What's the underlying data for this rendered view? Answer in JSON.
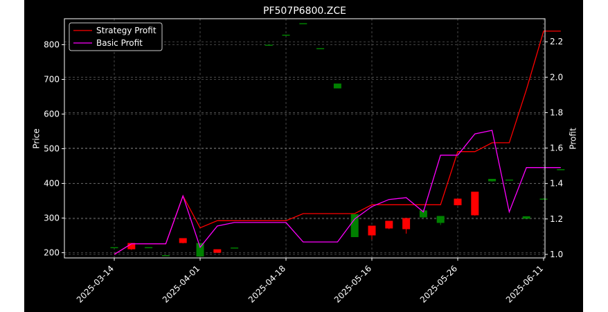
{
  "chart_data": {
    "type": "candlestick+line",
    "title": "PF507P6800.ZCE",
    "ylabel_left": "Price",
    "ylabel_right": "Profit",
    "xlabel": "",
    "ylim_left": [
      185,
      875
    ],
    "ylim_right": [
      0.98,
      2.33
    ],
    "yticks_left": [
      200,
      300,
      400,
      500,
      600,
      700,
      800
    ],
    "yticks_right": [
      1.0,
      1.2,
      1.4,
      1.6,
      1.8,
      2.0,
      2.2
    ],
    "xtick_labels": [
      {
        "index": 1,
        "label": "2025-03-14"
      },
      {
        "index": 6,
        "label": "2025-04-01"
      },
      {
        "index": 11,
        "label": "2025-04-18"
      },
      {
        "index": 16,
        "label": "2025-05-16"
      },
      {
        "index": 21,
        "label": "2025-05-26"
      },
      {
        "index": 26,
        "label": "2025-06-11"
      }
    ],
    "grid": true,
    "legend_position": "upper-left",
    "colors": {
      "up": "#008000",
      "down": "#ff0000",
      "strategy": "#ff0000",
      "basic": "#ff00ff",
      "grid": "#808080"
    },
    "candles": [
      {
        "i": 1,
        "open": 216,
        "high": 216,
        "low": 216,
        "close": 216
      },
      {
        "i": 2,
        "open": 228,
        "high": 228,
        "low": 208,
        "close": 210
      },
      {
        "i": 3,
        "open": 216,
        "high": 216,
        "low": 216,
        "close": 216
      },
      {
        "i": 4,
        "open": 193,
        "high": 193,
        "low": 193,
        "close": 193
      },
      {
        "i": 5,
        "open": 242,
        "high": 242,
        "low": 227,
        "close": 228
      },
      {
        "i": 6,
        "open": 189,
        "high": 228,
        "low": 189,
        "close": 228
      },
      {
        "i": 7,
        "open": 210,
        "high": 210,
        "low": 199,
        "close": 200
      },
      {
        "i": 8,
        "open": 215,
        "high": 215,
        "low": 215,
        "close": 215
      },
      {
        "i": 10,
        "open": 800,
        "high": 800,
        "low": 800,
        "close": 800
      },
      {
        "i": 11,
        "open": 829,
        "high": 829,
        "low": 829,
        "close": 829
      },
      {
        "i": 12,
        "open": 862,
        "high": 862,
        "low": 862,
        "close": 862
      },
      {
        "i": 13,
        "open": 790,
        "high": 790,
        "low": 790,
        "close": 790
      },
      {
        "i": 14,
        "open": 674,
        "high": 688,
        "low": 674,
        "close": 688
      },
      {
        "i": 15,
        "open": 245,
        "high": 311,
        "low": 245,
        "close": 311
      },
      {
        "i": 16,
        "open": 278,
        "high": 278,
        "low": 238,
        "close": 250
      },
      {
        "i": 17,
        "open": 292,
        "high": 292,
        "low": 268,
        "close": 270
      },
      {
        "i": 18,
        "open": 300,
        "high": 300,
        "low": 255,
        "close": 268
      },
      {
        "i": 19,
        "open": 302,
        "high": 326,
        "low": 300,
        "close": 322
      },
      {
        "i": 20,
        "open": 286,
        "high": 306,
        "low": 280,
        "close": 306
      },
      {
        "i": 21,
        "open": 356,
        "high": 356,
        "low": 336,
        "close": 337
      },
      {
        "i": 22,
        "open": 376,
        "high": 376,
        "low": 307,
        "close": 308
      },
      {
        "i": 23,
        "open": 406,
        "high": 413,
        "low": 405,
        "close": 413
      },
      {
        "i": 24,
        "open": 411,
        "high": 411,
        "low": 411,
        "close": 411
      },
      {
        "i": 25,
        "open": 298,
        "high": 305,
        "low": 298,
        "close": 305
      },
      {
        "i": 26,
        "open": 356,
        "high": 356,
        "low": 356,
        "close": 356
      },
      {
        "i": 27,
        "open": 441,
        "high": 441,
        "low": 441,
        "close": 441
      }
    ],
    "series": [
      {
        "name": "Strategy Profit",
        "x": [
          1,
          2,
          3,
          4,
          5,
          6,
          7,
          8,
          9,
          10,
          11,
          12,
          13,
          14,
          15,
          16,
          17,
          18,
          19,
          20,
          21,
          22,
          23,
          24,
          25,
          26,
          27
        ],
        "values": [
          1.0,
          1.06,
          1.06,
          1.06,
          1.33,
          1.15,
          1.19,
          1.19,
          1.19,
          1.19,
          1.19,
          1.23,
          1.23,
          1.23,
          1.23,
          1.28,
          1.28,
          1.28,
          1.28,
          1.28,
          1.58,
          1.58,
          1.63,
          1.63,
          1.93,
          2.26,
          2.26
        ]
      },
      {
        "name": "Basic Profit",
        "x": [
          1,
          2,
          3,
          4,
          5,
          6,
          7,
          8,
          9,
          10,
          11,
          12,
          13,
          14,
          15,
          16,
          17,
          18,
          19,
          20,
          21,
          22,
          23,
          24,
          25,
          26,
          27
        ],
        "values": [
          1.0,
          1.06,
          1.06,
          1.06,
          1.33,
          1.04,
          1.16,
          1.18,
          1.18,
          1.18,
          1.18,
          1.07,
          1.07,
          1.07,
          1.2,
          1.27,
          1.31,
          1.32,
          1.24,
          1.56,
          1.56,
          1.68,
          1.7,
          1.24,
          1.49,
          1.49,
          1.49
        ]
      }
    ]
  }
}
